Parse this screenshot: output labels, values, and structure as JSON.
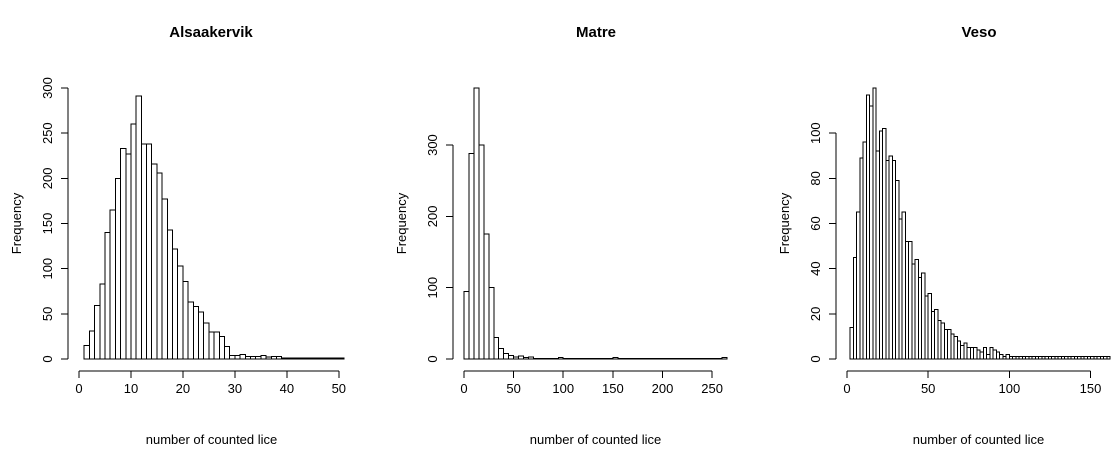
{
  "chart_data": [
    {
      "type": "bar",
      "title": "Alsaakervik",
      "xlabel": "number of counted lice",
      "ylabel": "Frequency",
      "xlim": [
        0,
        51
      ],
      "ylim": [
        0,
        300
      ],
      "xticks": [
        0,
        10,
        20,
        30,
        40,
        50
      ],
      "yticks": [
        0,
        50,
        100,
        150,
        200,
        250,
        300
      ],
      "bin_width": 1,
      "bin_start": 1,
      "values": [
        15,
        31,
        59,
        83,
        140,
        165,
        200,
        233,
        227,
        260,
        291,
        238,
        238,
        216,
        206,
        177,
        143,
        122,
        103,
        86,
        63,
        58,
        52,
        40,
        30,
        30,
        25,
        14,
        4,
        4,
        5,
        3,
        3,
        3,
        4,
        2,
        3,
        3,
        1,
        1,
        1,
        1,
        1,
        1,
        1,
        1,
        1,
        1,
        1,
        1
      ]
    },
    {
      "type": "bar",
      "title": "Matre",
      "xlabel": "number of counted lice",
      "ylabel": "Frequency",
      "xlim": [
        0,
        265
      ],
      "ylim": [
        0,
        380
      ],
      "xticks": [
        0,
        50,
        100,
        150,
        200,
        250
      ],
      "yticks": [
        0,
        100,
        200,
        300
      ],
      "bin_width": 5,
      "bin_start": 0,
      "values": [
        95,
        288,
        380,
        300,
        175,
        100,
        30,
        15,
        8,
        5,
        3,
        4,
        2,
        3,
        1,
        1,
        1,
        1,
        1,
        2,
        1,
        1,
        1,
        1,
        1,
        1,
        1,
        1,
        1,
        1,
        2,
        1,
        1,
        1,
        1,
        1,
        1,
        1,
        1,
        1,
        1,
        1,
        1,
        1,
        1,
        1,
        1,
        1,
        1,
        1,
        1,
        1,
        2
      ]
    },
    {
      "type": "bar",
      "title": "Veso",
      "xlabel": "number of counted lice",
      "ylabel": "Frequency",
      "xlim": [
        0,
        162
      ],
      "ylim": [
        0,
        120
      ],
      "xticks": [
        0,
        50,
        100,
        150
      ],
      "yticks": [
        0,
        20,
        40,
        60,
        80,
        100
      ],
      "bin_width": 2,
      "bin_start": 2,
      "values": [
        14,
        45,
        65,
        89,
        96,
        117,
        112,
        120,
        92,
        101,
        102,
        88,
        90,
        88,
        79,
        62,
        65,
        52,
        52,
        42,
        44,
        36,
        38,
        28,
        29,
        21,
        22,
        17,
        16,
        13,
        13,
        11,
        10,
        8,
        6,
        7,
        5,
        5,
        5,
        4,
        3,
        5,
        2,
        5,
        4,
        3,
        2,
        1,
        2,
        1,
        1,
        1,
        1,
        1,
        1,
        1,
        1,
        1,
        1,
        1,
        1,
        1,
        1,
        1,
        1,
        1,
        1,
        1,
        1,
        1,
        1,
        1,
        1,
        1,
        1,
        1,
        1,
        1,
        1,
        1
      ]
    }
  ]
}
